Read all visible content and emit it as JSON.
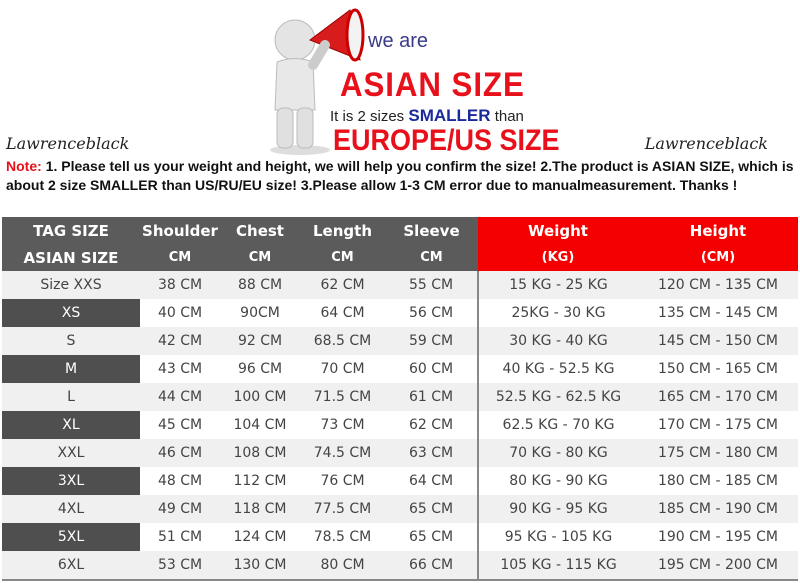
{
  "banner": {
    "we_are": "we are",
    "asian_size": "ASIAN SIZE",
    "line_pre": "It is 2 sizes",
    "line_smaller": "SMALLER",
    "line_post": "than",
    "europe": "EUROPE/US SIZE",
    "brand_left": "Lawrenceblack",
    "brand_right": "Lawrenceblack"
  },
  "note": {
    "label": "Note:",
    "text": "1. Please tell us your weight and height, we will help you confirm the size!  2.The product is ASIAN SIZE, which is about 2 size SMALLER than US/RU/EU size!  3.Please allow 1-3 CM error due to manualmeasurement. Thanks !"
  },
  "colors": {
    "accent": "#f50000",
    "header_gray": "#5b5b5b"
  },
  "table": {
    "headers": [
      [
        "TAG SIZE",
        "ASIAN SIZE"
      ],
      [
        "Shoulder",
        "CM"
      ],
      [
        "Chest",
        "CM"
      ],
      [
        "Length",
        "CM"
      ],
      [
        "Sleeve",
        "CM"
      ],
      [
        "Weight",
        "(KG)"
      ],
      [
        "Height",
        "(CM)"
      ]
    ],
    "rows": [
      [
        "Size XXS",
        "38 CM",
        "88 CM",
        "62 CM",
        "55 CM",
        "15 KG - 25 KG",
        "120 CM  - 135 CM"
      ],
      [
        "XS",
        "40 CM",
        "90CM",
        "64 CM",
        "56 CM",
        "25KG  - 30 KG",
        "135 CM - 145 CM"
      ],
      [
        "S",
        "42 CM",
        "92 CM",
        "68.5 CM",
        "59 CM",
        "30 KG - 40 KG",
        "145 CM  - 150 CM"
      ],
      [
        "M",
        "43 CM",
        "96 CM",
        "70 CM",
        "60 CM",
        "40 KG - 52.5 KG",
        "150 CM  - 165 CM"
      ],
      [
        "L",
        "44 CM",
        "100 CM",
        "71.5 CM",
        "61 CM",
        "52.5 KG  - 62.5 KG",
        "165 CM  - 170 CM"
      ],
      [
        "XL",
        "45 CM",
        "104 CM",
        "73 CM",
        "62 CM",
        "62.5 KG - 70 KG",
        "170 CM  - 175 CM"
      ],
      [
        "XXL",
        "46 CM",
        "108 CM",
        "74.5 CM",
        "63 CM",
        "70 KG  - 80  KG",
        "175 CM  - 180 CM"
      ],
      [
        "3XL",
        "48 CM",
        "112 CM",
        "76 CM",
        "64 CM",
        "80 KG  - 90  KG",
        "180 CM  - 185 CM"
      ],
      [
        "4XL",
        "49 CM",
        "118 CM",
        "77.5 CM",
        "65 CM",
        "90 KG  - 95 KG",
        "185 CM  - 190 CM"
      ],
      [
        "5XL",
        "51 CM",
        "124 CM",
        "78.5 CM",
        "65 CM",
        "95 KG - 105 KG",
        "190 CM  - 195 CM"
      ],
      [
        "6XL",
        "53 CM",
        "130 CM",
        "80 CM",
        "66 CM",
        "105 KG - 115 KG",
        "195 CM  - 200 CM"
      ]
    ]
  }
}
